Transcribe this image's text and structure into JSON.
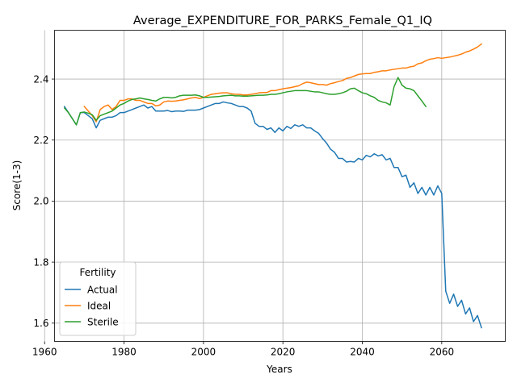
{
  "chart_data": {
    "type": "line",
    "title": "Average_EXPENDITURE_FOR_PARKS_Female_Q1_IQ",
    "xlabel": "Years",
    "ylabel": "Score(1-3)",
    "xlim": [
      1962.5,
      2076
    ],
    "ylim": [
      1.54,
      2.56
    ],
    "x_ticks": [
      1960,
      1980,
      2000,
      2020,
      2040,
      2060
    ],
    "x_tick_labels": [
      "1960",
      "1980",
      "2000",
      "2020",
      "2040",
      "2060"
    ],
    "y_ticks": [
      1.6,
      1.8,
      2.0,
      2.2,
      2.4
    ],
    "y_tick_labels": [
      "1.6",
      "1.8",
      "2.0",
      "2.2",
      "2.4"
    ],
    "grid": true,
    "legend": {
      "title": "Fertility",
      "placement": "lower-left"
    },
    "series": [
      {
        "name": "Actual",
        "color": "#1f77b4",
        "points": [
          [
            1965,
            2.31
          ],
          [
            1966,
            2.29
          ],
          [
            1967,
            2.27
          ],
          [
            1968,
            2.25
          ],
          [
            1969,
            2.29
          ],
          [
            1970,
            2.29
          ],
          [
            1971,
            2.28
          ],
          [
            1972,
            2.27
          ],
          [
            1973,
            2.24
          ],
          [
            1974,
            2.265
          ],
          [
            1975,
            2.27
          ],
          [
            1976,
            2.275
          ],
          [
            1977,
            2.275
          ],
          [
            1978,
            2.28
          ],
          [
            1979,
            2.29
          ],
          [
            1980,
            2.29
          ],
          [
            1981,
            2.295
          ],
          [
            1982,
            2.3
          ],
          [
            1983,
            2.305
          ],
          [
            1984,
            2.31
          ],
          [
            1985,
            2.315
          ],
          [
            1986,
            2.305
          ],
          [
            1987,
            2.31
          ],
          [
            1988,
            2.295
          ],
          [
            1989,
            2.295
          ],
          [
            1990,
            2.295
          ],
          [
            1991,
            2.297
          ],
          [
            1992,
            2.293
          ],
          [
            1993,
            2.295
          ],
          [
            1994,
            2.295
          ],
          [
            1995,
            2.294
          ],
          [
            1996,
            2.298
          ],
          [
            1997,
            2.298
          ],
          [
            1998,
            2.298
          ],
          [
            1999,
            2.3
          ],
          [
            2000,
            2.305
          ],
          [
            2001,
            2.31
          ],
          [
            2002,
            2.315
          ],
          [
            2003,
            2.32
          ],
          [
            2004,
            2.32
          ],
          [
            2005,
            2.325
          ],
          [
            2006,
            2.322
          ],
          [
            2007,
            2.32
          ],
          [
            2008,
            2.315
          ],
          [
            2009,
            2.31
          ],
          [
            2010,
            2.31
          ],
          [
            2011,
            2.305
          ],
          [
            2012,
            2.295
          ],
          [
            2013,
            2.255
          ],
          [
            2014,
            2.245
          ],
          [
            2015,
            2.245
          ],
          [
            2016,
            2.235
          ],
          [
            2017,
            2.24
          ],
          [
            2018,
            2.225
          ],
          [
            2019,
            2.24
          ],
          [
            2020,
            2.23
          ],
          [
            2021,
            2.245
          ],
          [
            2022,
            2.238
          ],
          [
            2023,
            2.25
          ],
          [
            2024,
            2.245
          ],
          [
            2025,
            2.25
          ],
          [
            2026,
            2.24
          ],
          [
            2027,
            2.24
          ],
          [
            2028,
            2.23
          ],
          [
            2029,
            2.222
          ],
          [
            2030,
            2.205
          ],
          [
            2031,
            2.19
          ],
          [
            2032,
            2.17
          ],
          [
            2033,
            2.16
          ],
          [
            2034,
            2.14
          ],
          [
            2035,
            2.14
          ],
          [
            2036,
            2.128
          ],
          [
            2037,
            2.13
          ],
          [
            2038,
            2.128
          ],
          [
            2039,
            2.14
          ],
          [
            2040,
            2.135
          ],
          [
            2041,
            2.15
          ],
          [
            2042,
            2.145
          ],
          [
            2043,
            2.155
          ],
          [
            2044,
            2.148
          ],
          [
            2045,
            2.152
          ],
          [
            2046,
            2.135
          ],
          [
            2047,
            2.14
          ],
          [
            2048,
            2.11
          ],
          [
            2049,
            2.11
          ],
          [
            2050,
            2.08
          ],
          [
            2051,
            2.085
          ],
          [
            2052,
            2.045
          ],
          [
            2053,
            2.06
          ],
          [
            2054,
            2.025
          ],
          [
            2055,
            2.045
          ],
          [
            2056,
            2.02
          ],
          [
            2057,
            2.045
          ],
          [
            2058,
            2.02
          ],
          [
            2059,
            2.05
          ],
          [
            2060,
            2.025
          ],
          [
            2061,
            1.705
          ],
          [
            2062,
            1.665
          ],
          [
            2063,
            1.695
          ],
          [
            2064,
            1.655
          ],
          [
            2065,
            1.675
          ],
          [
            2066,
            1.63
          ],
          [
            2067,
            1.65
          ],
          [
            2068,
            1.605
          ],
          [
            2069,
            1.625
          ],
          [
            2070,
            1.585
          ]
        ]
      },
      {
        "name": "Ideal",
        "color": "#ff7f0e",
        "points": [
          [
            1970,
            2.31
          ],
          [
            1971,
            2.295
          ],
          [
            1972,
            2.28
          ],
          [
            1973,
            2.26
          ],
          [
            1974,
            2.3
          ],
          [
            1975,
            2.31
          ],
          [
            1976,
            2.315
          ],
          [
            1977,
            2.3
          ],
          [
            1978,
            2.31
          ],
          [
            1979,
            2.33
          ],
          [
            1980,
            2.33
          ],
          [
            1981,
            2.335
          ],
          [
            1982,
            2.335
          ],
          [
            1983,
            2.33
          ],
          [
            1984,
            2.33
          ],
          [
            1985,
            2.325
          ],
          [
            1986,
            2.32
          ],
          [
            1987,
            2.32
          ],
          [
            1988,
            2.312
          ],
          [
            1989,
            2.315
          ],
          [
            1990,
            2.325
          ],
          [
            1991,
            2.328
          ],
          [
            1992,
            2.327
          ],
          [
            1993,
            2.328
          ],
          [
            1994,
            2.33
          ],
          [
            1995,
            2.332
          ],
          [
            1996,
            2.335
          ],
          [
            1997,
            2.338
          ],
          [
            1998,
            2.34
          ],
          [
            1999,
            2.336
          ],
          [
            2000,
            2.34
          ],
          [
            2001,
            2.345
          ],
          [
            2002,
            2.35
          ],
          [
            2003,
            2.352
          ],
          [
            2004,
            2.354
          ],
          [
            2005,
            2.355
          ],
          [
            2006,
            2.355
          ],
          [
            2007,
            2.352
          ],
          [
            2008,
            2.35
          ],
          [
            2009,
            2.35
          ],
          [
            2010,
            2.348
          ],
          [
            2011,
            2.348
          ],
          [
            2012,
            2.35
          ],
          [
            2013,
            2.352
          ],
          [
            2014,
            2.355
          ],
          [
            2015,
            2.356
          ],
          [
            2016,
            2.356
          ],
          [
            2017,
            2.362
          ],
          [
            2018,
            2.362
          ],
          [
            2019,
            2.365
          ],
          [
            2020,
            2.368
          ],
          [
            2021,
            2.37
          ],
          [
            2022,
            2.372
          ],
          [
            2023,
            2.375
          ],
          [
            2024,
            2.378
          ],
          [
            2025,
            2.385
          ],
          [
            2026,
            2.39
          ],
          [
            2027,
            2.388
          ],
          [
            2028,
            2.385
          ],
          [
            2029,
            2.382
          ],
          [
            2030,
            2.382
          ],
          [
            2031,
            2.38
          ],
          [
            2032,
            2.385
          ],
          [
            2033,
            2.388
          ],
          [
            2034,
            2.392
          ],
          [
            2035,
            2.395
          ],
          [
            2036,
            2.402
          ],
          [
            2037,
            2.405
          ],
          [
            2038,
            2.41
          ],
          [
            2039,
            2.415
          ],
          [
            2040,
            2.417
          ],
          [
            2041,
            2.418
          ],
          [
            2042,
            2.418
          ],
          [
            2043,
            2.422
          ],
          [
            2044,
            2.424
          ],
          [
            2045,
            2.427
          ],
          [
            2046,
            2.427
          ],
          [
            2047,
            2.43
          ],
          [
            2048,
            2.432
          ],
          [
            2049,
            2.434
          ],
          [
            2050,
            2.436
          ],
          [
            2051,
            2.436
          ],
          [
            2052,
            2.44
          ],
          [
            2053,
            2.442
          ],
          [
            2054,
            2.45
          ],
          [
            2055,
            2.453
          ],
          [
            2056,
            2.46
          ],
          [
            2057,
            2.465
          ],
          [
            2058,
            2.467
          ],
          [
            2059,
            2.47
          ],
          [
            2060,
            2.468
          ],
          [
            2061,
            2.47
          ],
          [
            2062,
            2.472
          ],
          [
            2063,
            2.475
          ],
          [
            2064,
            2.478
          ],
          [
            2065,
            2.482
          ],
          [
            2066,
            2.488
          ],
          [
            2067,
            2.492
          ],
          [
            2068,
            2.498
          ],
          [
            2069,
            2.505
          ],
          [
            2070,
            2.515
          ]
        ]
      },
      {
        "name": "Sterile",
        "color": "#2ca02c",
        "points": [
          [
            1965,
            2.305
          ],
          [
            1966,
            2.29
          ],
          [
            1967,
            2.27
          ],
          [
            1968,
            2.25
          ],
          [
            1969,
            2.29
          ],
          [
            1970,
            2.292
          ],
          [
            1971,
            2.288
          ],
          [
            1972,
            2.283
          ],
          [
            1973,
            2.265
          ],
          [
            1974,
            2.28
          ],
          [
            1975,
            2.285
          ],
          [
            1976,
            2.29
          ],
          [
            1977,
            2.295
          ],
          [
            1978,
            2.305
          ],
          [
            1979,
            2.315
          ],
          [
            1980,
            2.32
          ],
          [
            1981,
            2.328
          ],
          [
            1982,
            2.333
          ],
          [
            1983,
            2.335
          ],
          [
            1984,
            2.338
          ],
          [
            1985,
            2.335
          ],
          [
            1986,
            2.333
          ],
          [
            1987,
            2.33
          ],
          [
            1988,
            2.328
          ],
          [
            1989,
            2.335
          ],
          [
            1990,
            2.34
          ],
          [
            1991,
            2.34
          ],
          [
            1992,
            2.338
          ],
          [
            1993,
            2.34
          ],
          [
            1994,
            2.345
          ],
          [
            1995,
            2.347
          ],
          [
            1996,
            2.347
          ],
          [
            1997,
            2.347
          ],
          [
            1998,
            2.348
          ],
          [
            1999,
            2.345
          ],
          [
            2000,
            2.34
          ],
          [
            2001,
            2.34
          ],
          [
            2002,
            2.341
          ],
          [
            2003,
            2.342
          ],
          [
            2004,
            2.343
          ],
          [
            2005,
            2.345
          ],
          [
            2006,
            2.346
          ],
          [
            2007,
            2.347
          ],
          [
            2008,
            2.345
          ],
          [
            2009,
            2.345
          ],
          [
            2010,
            2.344
          ],
          [
            2011,
            2.344
          ],
          [
            2012,
            2.345
          ],
          [
            2013,
            2.346
          ],
          [
            2014,
            2.347
          ],
          [
            2015,
            2.347
          ],
          [
            2016,
            2.348
          ],
          [
            2017,
            2.35
          ],
          [
            2018,
            2.35
          ],
          [
            2019,
            2.352
          ],
          [
            2020,
            2.355
          ],
          [
            2021,
            2.358
          ],
          [
            2022,
            2.36
          ],
          [
            2023,
            2.362
          ],
          [
            2024,
            2.362
          ],
          [
            2025,
            2.362
          ],
          [
            2026,
            2.362
          ],
          [
            2027,
            2.36
          ],
          [
            2028,
            2.358
          ],
          [
            2029,
            2.358
          ],
          [
            2030,
            2.355
          ],
          [
            2031,
            2.352
          ],
          [
            2032,
            2.35
          ],
          [
            2033,
            2.35
          ],
          [
            2034,
            2.352
          ],
          [
            2035,
            2.355
          ],
          [
            2036,
            2.36
          ],
          [
            2037,
            2.368
          ],
          [
            2038,
            2.37
          ],
          [
            2039,
            2.362
          ],
          [
            2040,
            2.355
          ],
          [
            2041,
            2.352
          ],
          [
            2042,
            2.345
          ],
          [
            2043,
            2.34
          ],
          [
            2044,
            2.33
          ],
          [
            2045,
            2.325
          ],
          [
            2046,
            2.322
          ],
          [
            2047,
            2.315
          ],
          [
            2048,
            2.375
          ],
          [
            2049,
            2.405
          ],
          [
            2050,
            2.38
          ],
          [
            2051,
            2.37
          ],
          [
            2052,
            2.368
          ],
          [
            2053,
            2.362
          ],
          [
            2054,
            2.345
          ],
          [
            2055,
            2.328
          ],
          [
            2056,
            2.31
          ]
        ]
      }
    ]
  }
}
